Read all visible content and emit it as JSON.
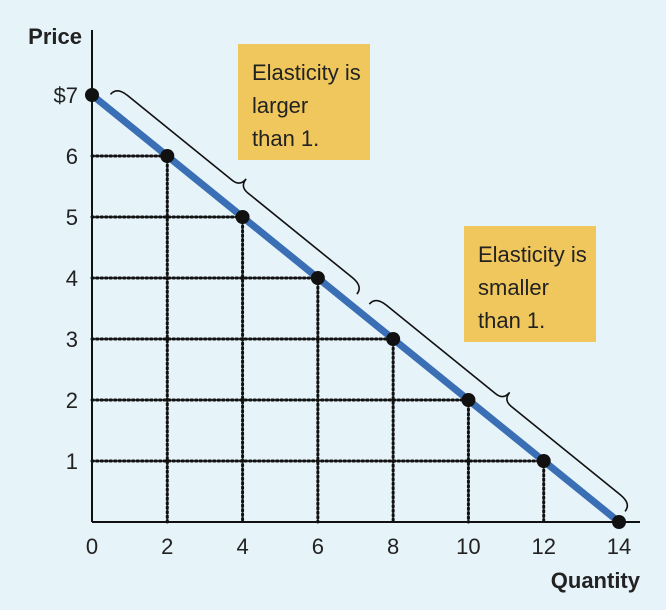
{
  "chart_data": {
    "type": "line",
    "title": "",
    "xlabel": "Quantity",
    "ylabel": "Price",
    "xlim": [
      0,
      14
    ],
    "ylim": [
      0,
      7
    ],
    "x_ticks": [
      "0",
      "2",
      "4",
      "6",
      "8",
      "10",
      "12",
      "14"
    ],
    "y_ticks": [
      "",
      "1",
      "2",
      "3",
      "4",
      "5",
      "6",
      "$7"
    ],
    "series": [
      {
        "x": [
          0,
          2,
          4,
          6,
          8,
          10,
          12,
          14
        ],
        "y": [
          7,
          6,
          5,
          4,
          3,
          2,
          1,
          0
        ],
        "color": "#3a6fb5"
      }
    ],
    "dotted_guides": true,
    "annotations": [
      {
        "lines": [
          "Elasticity is",
          "larger",
          "than 1."
        ],
        "bracket_from_x": 0,
        "bracket_to_x": 7
      },
      {
        "lines": [
          "Elasticity is",
          "smaller",
          "than 1."
        ],
        "bracket_from_x": 7,
        "bracket_to_x": 14
      }
    ],
    "colors": {
      "background": "#e6f3f9",
      "line": "#3a6fb5",
      "callout": "#f0c75c",
      "point": "#111111"
    }
  }
}
